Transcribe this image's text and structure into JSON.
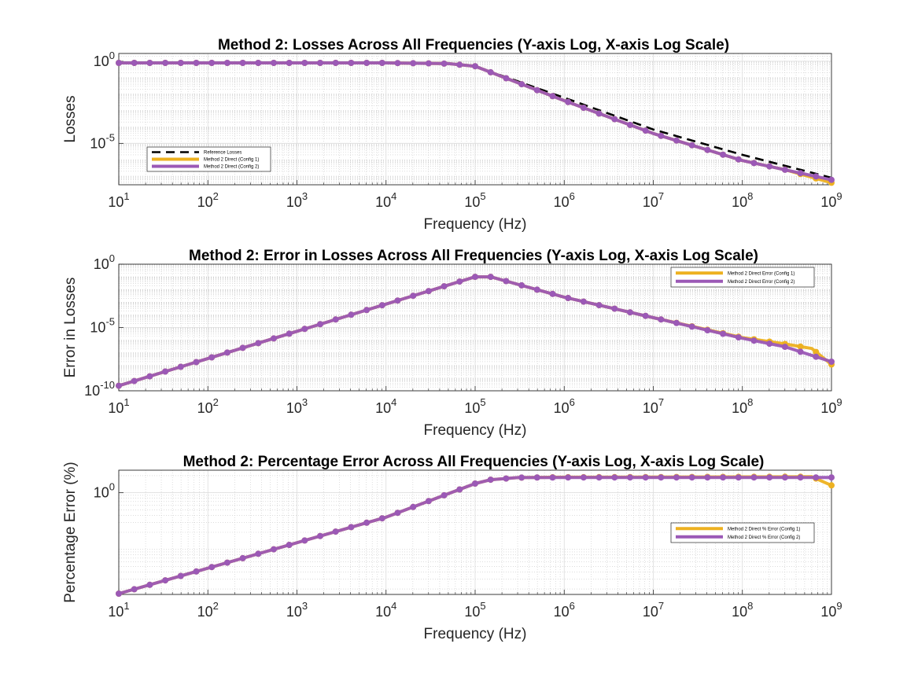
{
  "chart_data": [
    {
      "type": "line",
      "title": "Method 2: Losses Across All Frequencies (Y-axis Log, X-axis Log Scale)",
      "xlabel": "Frequency (Hz)",
      "ylabel": "Losses",
      "xscale": "log",
      "yscale": "log",
      "xlim": [
        10,
        1000000000
      ],
      "ylim": [
        3e-08,
        3
      ],
      "grid": true,
      "legend_position": "bottom-left",
      "x_ticks": [
        {
          "base": "10",
          "exp": "1"
        },
        {
          "base": "10",
          "exp": "2"
        },
        {
          "base": "10",
          "exp": "3"
        },
        {
          "base": "10",
          "exp": "4"
        },
        {
          "base": "10",
          "exp": "5"
        },
        {
          "base": "10",
          "exp": "6"
        },
        {
          "base": "10",
          "exp": "7"
        },
        {
          "base": "10",
          "exp": "8"
        },
        {
          "base": "10",
          "exp": "9"
        }
      ],
      "y_ticks": [
        {
          "value": 1,
          "base": "10",
          "exp": "0"
        },
        {
          "value": 1e-05,
          "base": "10",
          "exp": "-5"
        }
      ],
      "series": [
        {
          "name": "Reference Losses",
          "color": "#000000",
          "style": "dashed",
          "markers": false,
          "points": [
            [
              10,
              0.8
            ],
            [
              1000,
              0.8
            ],
            [
              10000,
              0.8
            ],
            [
              50000,
              0.72
            ],
            [
              100000,
              0.5
            ],
            [
              1000000,
              0.006
            ],
            [
              10000000,
              7e-05
            ],
            [
              100000000,
              2e-06
            ],
            [
              1000000000,
              8e-08
            ]
          ]
        },
        {
          "name": "Method 2 Direct (Config 1)",
          "color": "#EDB120",
          "style": "solid",
          "markers": true,
          "points": [
            [
              10,
              0.8
            ],
            [
              1000,
              0.8
            ],
            [
              10000,
              0.8
            ],
            [
              50000,
              0.72
            ],
            [
              100000,
              0.5
            ],
            [
              1000000,
              0.004
            ],
            [
              10000000,
              4e-05
            ],
            [
              100000000,
              9e-07
            ],
            [
              300000000,
              2.5e-07
            ],
            [
              1000000000,
              4e-08
            ]
          ]
        },
        {
          "name": "Method 2 Direct (Config 2)",
          "color": "#9B59B6",
          "style": "solid",
          "markers": true,
          "points": [
            [
              10,
              0.8
            ],
            [
              1000,
              0.8
            ],
            [
              10000,
              0.8
            ],
            [
              50000,
              0.72
            ],
            [
              100000,
              0.5
            ],
            [
              1000000,
              0.004
            ],
            [
              10000000,
              4e-05
            ],
            [
              100000000,
              9e-07
            ],
            [
              1000000000,
              6e-08
            ]
          ]
        }
      ]
    },
    {
      "type": "line",
      "title": "Method 2: Error in Losses Across All Frequencies (Y-axis Log, X-axis Log Scale)",
      "xlabel": "Frequency (Hz)",
      "ylabel": "Error in Losses",
      "xscale": "log",
      "yscale": "log",
      "xlim": [
        10,
        1000000000
      ],
      "ylim": [
        1e-10,
        1
      ],
      "grid": true,
      "legend_position": "top-right",
      "x_ticks": [
        {
          "base": "10",
          "exp": "1"
        },
        {
          "base": "10",
          "exp": "2"
        },
        {
          "base": "10",
          "exp": "3"
        },
        {
          "base": "10",
          "exp": "4"
        },
        {
          "base": "10",
          "exp": "5"
        },
        {
          "base": "10",
          "exp": "6"
        },
        {
          "base": "10",
          "exp": "7"
        },
        {
          "base": "10",
          "exp": "8"
        },
        {
          "base": "10",
          "exp": "9"
        }
      ],
      "y_ticks": [
        {
          "value": 1,
          "base": "10",
          "exp": "0"
        },
        {
          "value": 1e-05,
          "base": "10",
          "exp": "-5"
        },
        {
          "value": 1e-10,
          "base": "10",
          "exp": "-10"
        }
      ],
      "series": [
        {
          "name": "Method 2 Direct Error (Config 1)",
          "color": "#EDB120",
          "style": "solid",
          "markers": true,
          "points": [
            [
              10,
              2.5e-10
            ],
            [
              100000,
              0.1
            ],
            [
              150000,
              0.1
            ],
            [
              1000000,
              0.0025
            ],
            [
              10000000,
              6e-05
            ],
            [
              100000000,
              1.6e-06
            ],
            [
              300000000,
              5e-07
            ],
            [
              600000000,
              2.2e-07
            ],
            [
              1000000000,
              1.2e-08
            ]
          ]
        },
        {
          "name": "Method 2 Direct Error (Config 2)",
          "color": "#9B59B6",
          "style": "solid",
          "markers": true,
          "points": [
            [
              10,
              2.5e-10
            ],
            [
              100000,
              0.1
            ],
            [
              150000,
              0.1
            ],
            [
              1000000,
              0.0025
            ],
            [
              10000000,
              6e-05
            ],
            [
              100000000,
              1.4e-06
            ],
            [
              300000000,
              3e-07
            ],
            [
              1000000000,
              2e-08
            ]
          ]
        }
      ]
    },
    {
      "type": "line",
      "title": "Method 2: Percentage Error Across All Frequencies (Y-axis Log, X-axis Log Scale)",
      "xlabel": "Frequency (Hz)",
      "ylabel": "Percentage Error (%)",
      "xscale": "log",
      "yscale": "log",
      "xlim": [
        10,
        1000000000
      ],
      "ylim": [
        0.016,
        2.5
      ],
      "grid": true,
      "legend_position": "right",
      "x_ticks": [
        {
          "base": "10",
          "exp": "1"
        },
        {
          "base": "10",
          "exp": "2"
        },
        {
          "base": "10",
          "exp": "3"
        },
        {
          "base": "10",
          "exp": "4"
        },
        {
          "base": "10",
          "exp": "5"
        },
        {
          "base": "10",
          "exp": "6"
        },
        {
          "base": "10",
          "exp": "7"
        },
        {
          "base": "10",
          "exp": "8"
        },
        {
          "base": "10",
          "exp": "9"
        }
      ],
      "y_ticks": [
        {
          "value": 1,
          "base": "10",
          "exp": "0"
        }
      ],
      "series": [
        {
          "name": "Method 2 Direct % Error (Config 1)",
          "color": "#EDB120",
          "style": "solid",
          "markers": true,
          "points": [
            [
              10,
              0.0165
            ],
            [
              10000,
              0.37
            ],
            [
              100000,
              1.45
            ],
            [
              150000,
              1.7
            ],
            [
              300000,
              1.85
            ],
            [
              1000000,
              1.88
            ],
            [
              600000000,
              1.92
            ],
            [
              1000000000,
              1.35
            ]
          ]
        },
        {
          "name": "Method 2 Direct % Error (Config 2)",
          "color": "#9B59B6",
          "style": "solid",
          "markers": true,
          "points": [
            [
              10,
              0.0165
            ],
            [
              10000,
              0.37
            ],
            [
              100000,
              1.45
            ],
            [
              150000,
              1.7
            ],
            [
              300000,
              1.85
            ],
            [
              1000000,
              1.86
            ],
            [
              1000000000,
              1.86
            ]
          ]
        }
      ]
    }
  ]
}
